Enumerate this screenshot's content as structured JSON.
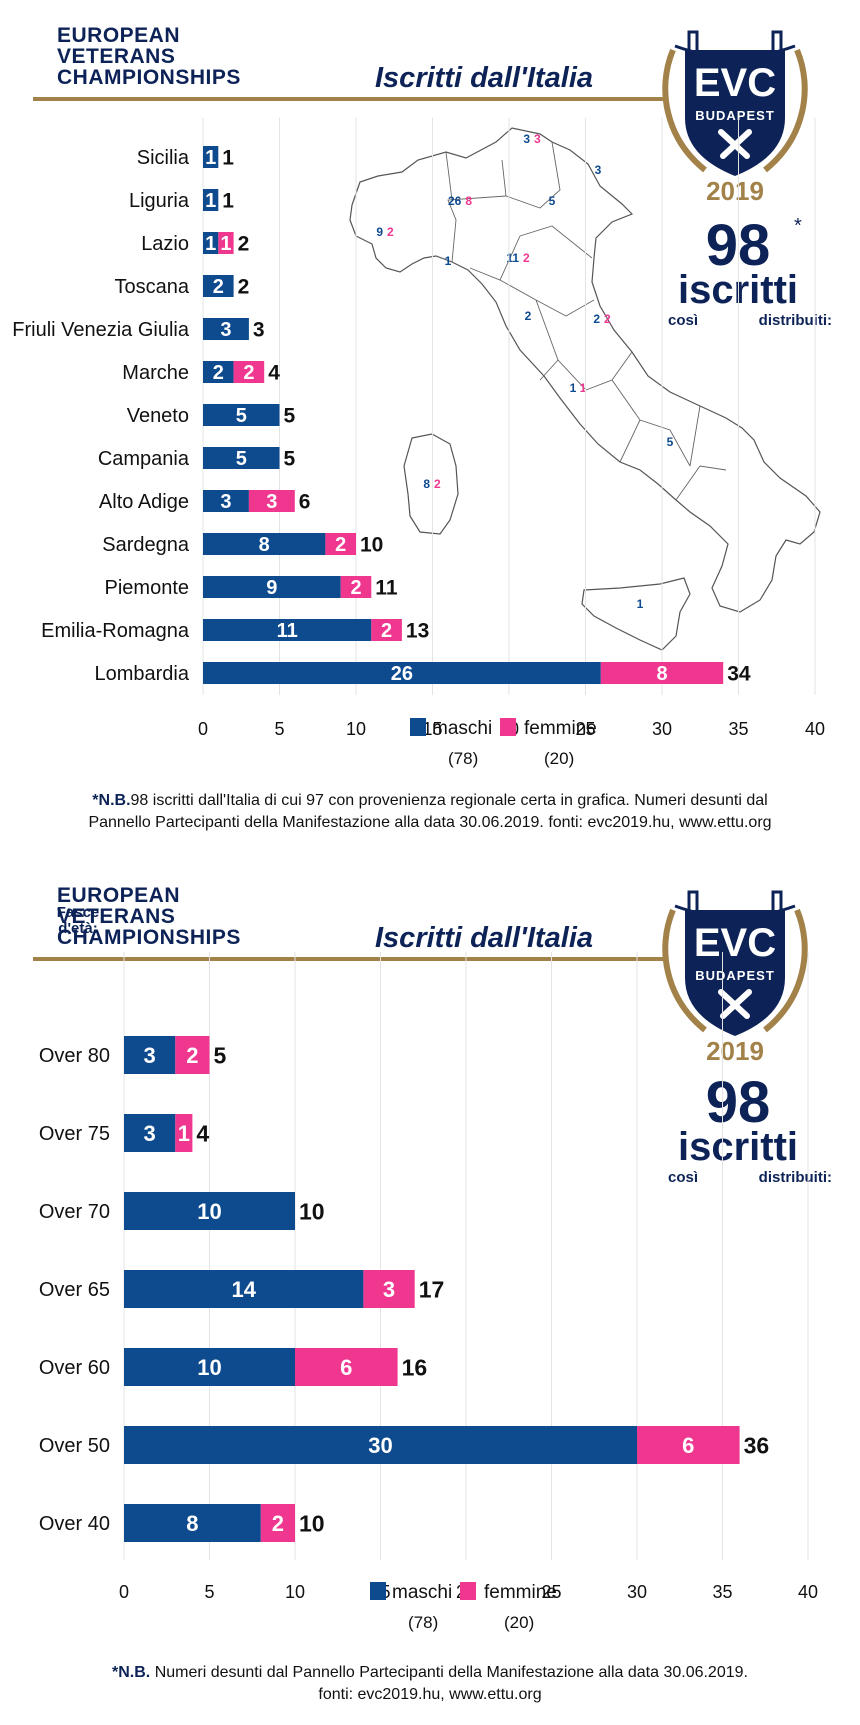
{
  "header": {
    "org_lines": [
      "EUROPEAN",
      "VETERANS",
      "CHAMPIONSHIPS"
    ],
    "title": "Iscritti dall'Italia"
  },
  "badge": {
    "top": "EVC",
    "city": "BUDAPEST",
    "year": "2019"
  },
  "total": {
    "number": "98",
    "asterisk": "*",
    "label": "iscritti",
    "sub1": "così",
    "sub2": "distribuiti:"
  },
  "colors": {
    "maschi": "#0d4a8e",
    "femmine": "#f0378f",
    "navy": "#0d2357",
    "gold": "#a3824a"
  },
  "map_labels": [
    {
      "region": "Alto Adige",
      "m": "3",
      "f": "3"
    },
    {
      "region": "Friuli Venezia Giulia",
      "m": "3",
      "f": ""
    },
    {
      "region": "Lombardia",
      "m": "26",
      "f": "8"
    },
    {
      "region": "Veneto",
      "m": "5",
      "f": ""
    },
    {
      "region": "Piemonte",
      "m": "9",
      "f": "2"
    },
    {
      "region": "Liguria",
      "m": "1",
      "f": ""
    },
    {
      "region": "Emilia-Romagna",
      "m": "11",
      "f": "2"
    },
    {
      "region": "Toscana",
      "m": "2",
      "f": ""
    },
    {
      "region": "Marche",
      "m": "2",
      "f": "2"
    },
    {
      "region": "Lazio",
      "m": "1",
      "f": "1"
    },
    {
      "region": "Campania",
      "m": "5",
      "f": ""
    },
    {
      "region": "Sardegna",
      "m": "8",
      "f": "2"
    },
    {
      "region": "Sicilia",
      "m": "1",
      "f": ""
    }
  ],
  "chart_data": [
    {
      "type": "bar",
      "orientation": "horizontal",
      "stacked": true,
      "categories": [
        "Sicilia",
        "Liguria",
        "Lazio",
        "Toscana",
        "Friuli Venezia Giulia",
        "Marche",
        "Veneto",
        "Campania",
        "Alto Adige",
        "Sardegna",
        "Piemonte",
        "Emilia-Romagna",
        "Lombardia"
      ],
      "series": [
        {
          "name": "maschi",
          "values": [
            1,
            1,
            1,
            2,
            3,
            2,
            5,
            5,
            3,
            8,
            9,
            11,
            26
          ]
        },
        {
          "name": "femmine",
          "values": [
            0,
            0,
            1,
            0,
            0,
            2,
            0,
            0,
            3,
            2,
            2,
            2,
            8
          ]
        }
      ],
      "totals": [
        1,
        1,
        2,
        2,
        3,
        4,
        5,
        5,
        6,
        10,
        11,
        13,
        34
      ],
      "xlim": [
        0,
        40
      ],
      "xticks": [
        0,
        5,
        10,
        15,
        20,
        25,
        30,
        35,
        40
      ],
      "legend": {
        "placement": "bottom",
        "items": [
          {
            "name": "maschi",
            "count": "(78)"
          },
          {
            "name": "femmine",
            "count": "(20)"
          }
        ]
      },
      "grid": true,
      "footnote_bold": "*N.B.",
      "footnote_lines": [
        "98 iscritti dall'Italia di cui 97 con provenienza regionale certa in grafica. Numeri desunti dal",
        "Pannello Partecipanti della Manifestazione alla data 30.06.2019. fonti: evc2019.hu, www.ettu.org"
      ]
    },
    {
      "type": "bar",
      "orientation": "horizontal",
      "stacked": true,
      "category_title_lines": [
        "Fasce",
        "d'età:"
      ],
      "categories": [
        "Over 80",
        "Over 75",
        "Over 70",
        "Over 65",
        "Over 60",
        "Over 50",
        "Over 40"
      ],
      "series": [
        {
          "name": "maschi",
          "values": [
            3,
            3,
            10,
            14,
            10,
            30,
            8
          ]
        },
        {
          "name": "femmine",
          "values": [
            2,
            1,
            0,
            3,
            6,
            6,
            2
          ]
        }
      ],
      "totals": [
        5,
        4,
        10,
        17,
        16,
        36,
        10
      ],
      "xlim": [
        0,
        40
      ],
      "xticks": [
        0,
        5,
        10,
        15,
        20,
        25,
        30,
        35,
        40
      ],
      "legend": {
        "placement": "bottom",
        "items": [
          {
            "name": "maschi",
            "count": "(78)"
          },
          {
            "name": "femmine",
            "count": "(20)"
          }
        ]
      },
      "grid": true,
      "footnote_bold": "*N.B.",
      "footnote_lines": [
        " Numeri desunti dal Pannello Partecipanti della Manifestazione alla data 30.06.2019.",
        "fonti: evc2019.hu, www.ettu.org"
      ]
    }
  ]
}
